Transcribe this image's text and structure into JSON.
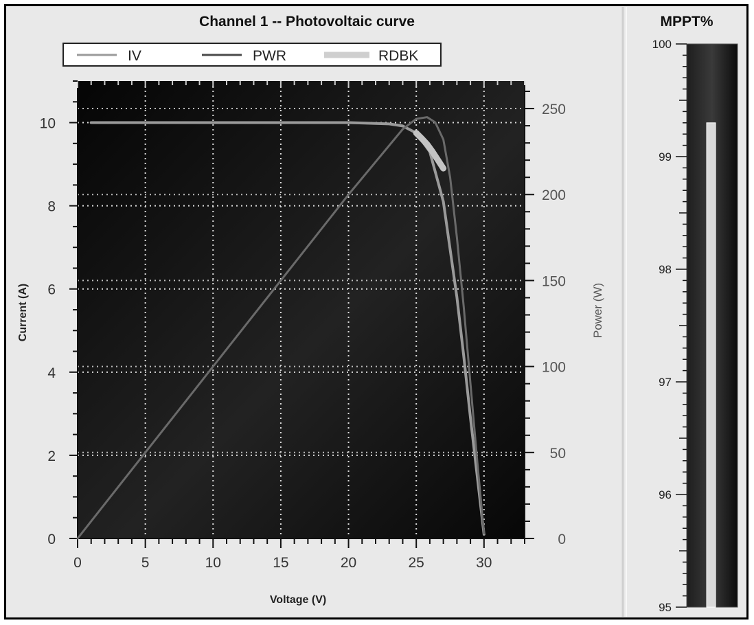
{
  "chart_data": [
    {
      "type": "line",
      "title": "Channel 1 -- Photovoltaic curve",
      "xlabel": "Voltage (V)",
      "ylabel": "Current (A)",
      "y2label": "Power  (W)",
      "xlim": [
        0,
        33
      ],
      "ylim": [
        0,
        11
      ],
      "y2lim": [
        0,
        266
      ],
      "x_ticks": [
        0,
        5,
        10,
        15,
        20,
        25,
        30
      ],
      "y_ticks": [
        0,
        2,
        4,
        6,
        8,
        10
      ],
      "y2_ticks": [
        0,
        50,
        100,
        150,
        200,
        250
      ],
      "grid": true,
      "legend_position": "top",
      "legend": [
        "IV",
        "PWR",
        "RDBK"
      ],
      "series": [
        {
          "name": "IV",
          "axis": "left",
          "color": "#9a9a9a",
          "x": [
            1,
            5,
            10,
            15,
            20,
            23,
            24,
            25,
            26,
            27,
            28,
            28.5,
            29,
            29.5,
            30
          ],
          "y": [
            10,
            10,
            10,
            10,
            10,
            9.97,
            9.92,
            9.75,
            9.3,
            8.1,
            5.8,
            4.4,
            2.9,
            1.5,
            0.1
          ]
        },
        {
          "name": "PWR",
          "axis": "right",
          "color": "#6a6a6a",
          "x": [
            0,
            5,
            10,
            15,
            20,
            24,
            25,
            25.8,
            26.4,
            27,
            27.5,
            28,
            28.5,
            29,
            29.5,
            30
          ],
          "y": [
            0,
            50,
            100,
            150,
            200,
            238,
            244,
            245,
            242,
            232,
            210,
            175,
            135,
            90,
            45,
            3
          ]
        },
        {
          "name": "RDBK",
          "axis": "left",
          "color": "#c4c4c4",
          "x": [
            25,
            25.4,
            25.8,
            26.2,
            26.6,
            27
          ],
          "y": [
            9.75,
            9.62,
            9.48,
            9.3,
            9.1,
            8.9
          ]
        }
      ]
    },
    {
      "type": "gauge",
      "title": "MPPT%",
      "ylim": [
        95,
        100
      ],
      "ticks": [
        95,
        96,
        97,
        98,
        99,
        100
      ],
      "value": 99.3
    }
  ]
}
